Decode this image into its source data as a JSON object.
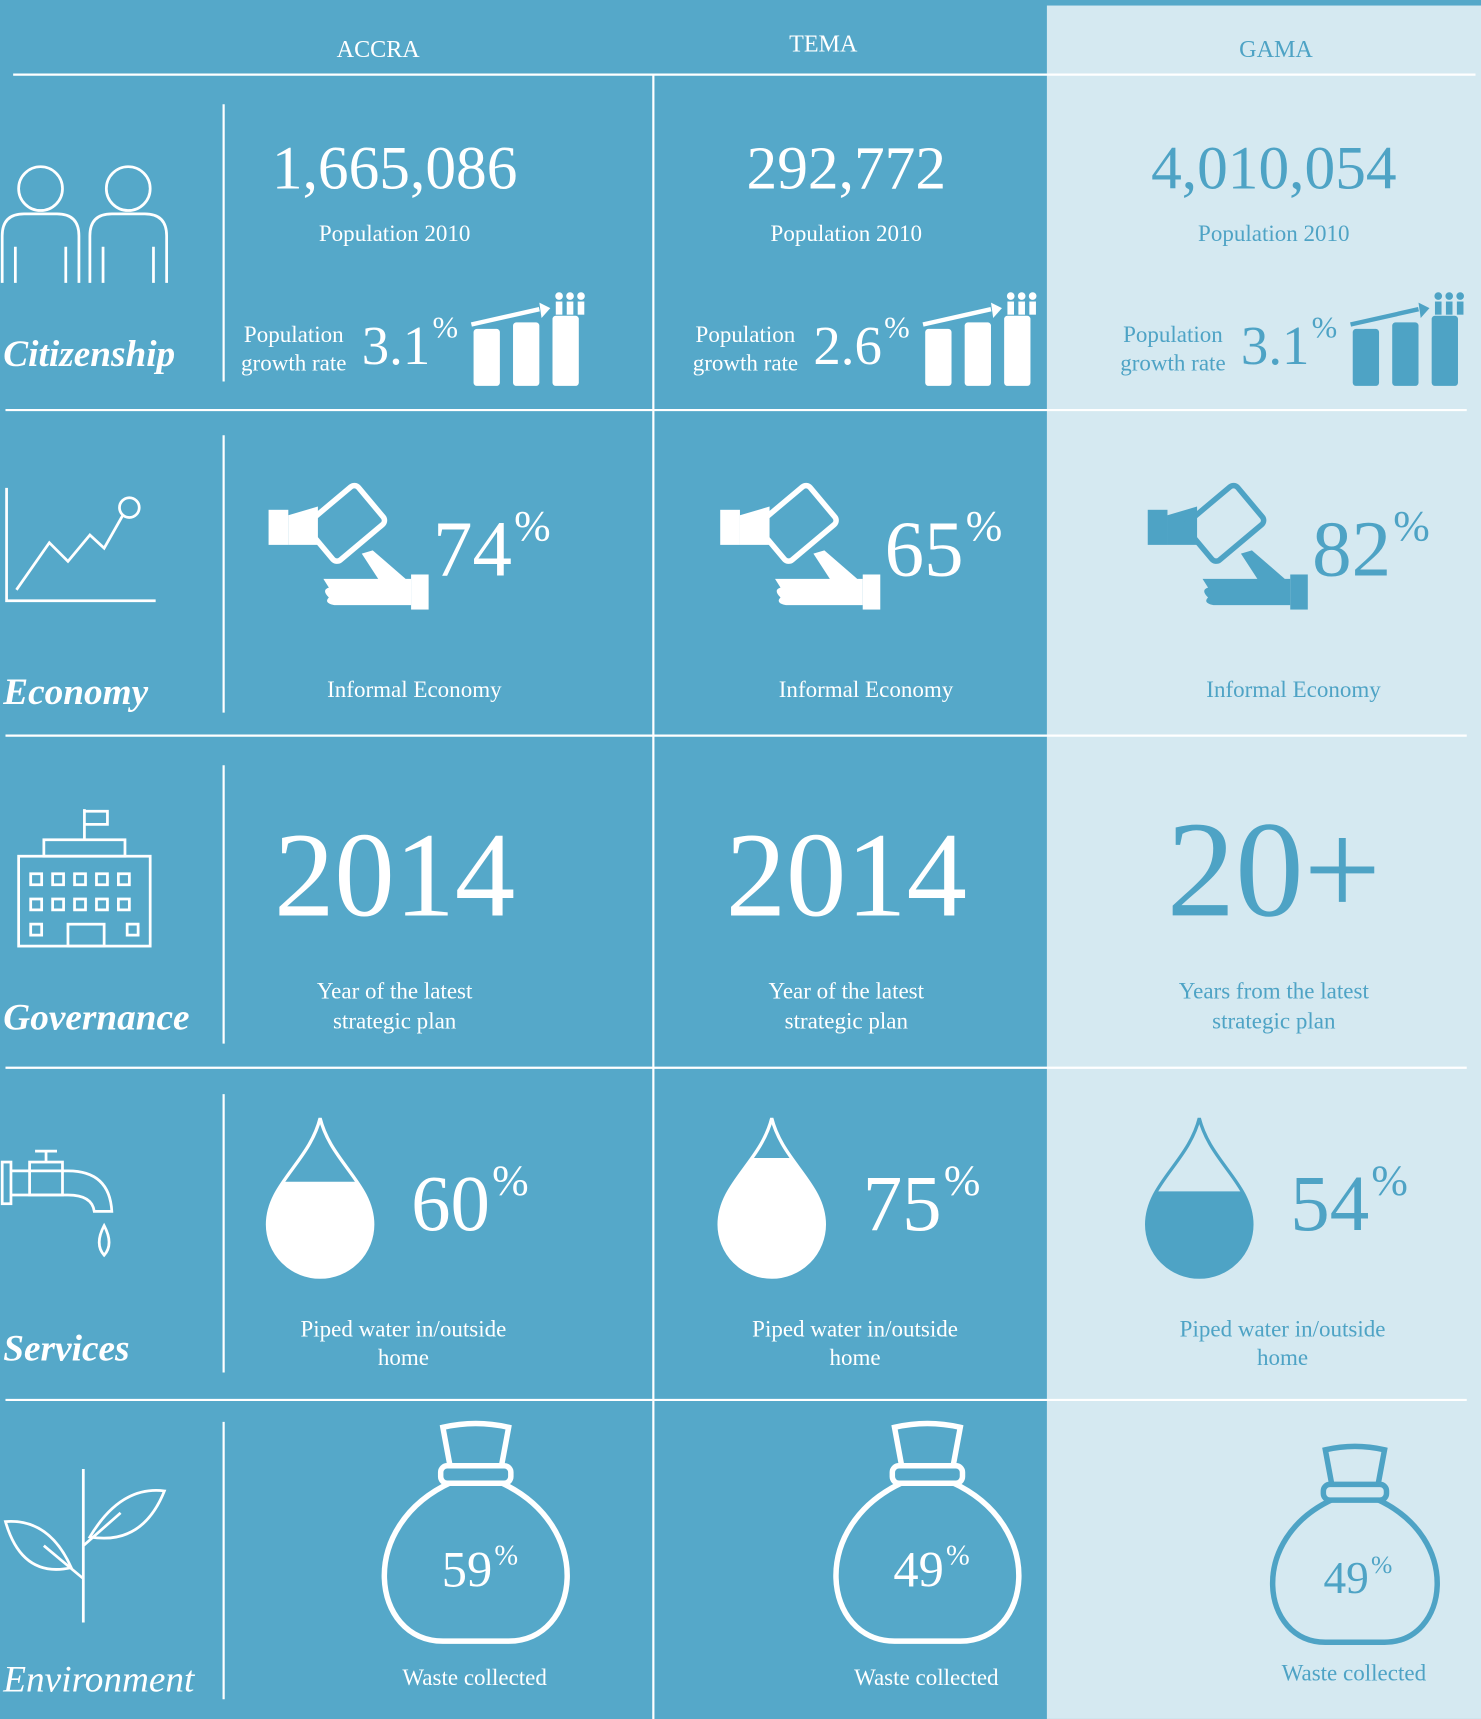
{
  "columns": [
    "ACCRA",
    "TEMA",
    "GAMA"
  ],
  "citizenship": {
    "label": "Citizenship",
    "cells": [
      {
        "value": "1,665,086",
        "caption": "Population 2010",
        "growth_lines": [
          "Population",
          "growth rate"
        ],
        "growth": "3.1",
        "unit": "%"
      },
      {
        "value": "292,772",
        "caption": "Population 2010",
        "growth_lines": [
          "Population",
          "growth rate"
        ],
        "growth": "2.6",
        "unit": "%"
      },
      {
        "value": "4,010,054",
        "caption": "Population 2010",
        "growth_lines": [
          "Population",
          "growth rate"
        ],
        "growth": "3.1",
        "unit": "%"
      }
    ]
  },
  "economy": {
    "label": "Economy",
    "cells": [
      {
        "value": "74",
        "unit": "%",
        "caption": "Informal Economy"
      },
      {
        "value": "65",
        "unit": "%",
        "caption": "Informal Economy"
      },
      {
        "value": "82",
        "unit": "%",
        "caption": "Informal Economy"
      }
    ]
  },
  "governance": {
    "label": "Governance",
    "cells": [
      {
        "value": "2014",
        "caption_lines": [
          "Year of the latest",
          "strategic plan"
        ]
      },
      {
        "value": "2014",
        "caption_lines": [
          "Year of the latest",
          "strategic plan"
        ]
      },
      {
        "value": "20+",
        "caption_lines": [
          "Years from the latest",
          "strategic plan"
        ]
      }
    ]
  },
  "services": {
    "label": "Services",
    "cells": [
      {
        "value": "60",
        "unit": "%",
        "caption_lines": [
          "Piped water in/outside",
          "home"
        ]
      },
      {
        "value": "75",
        "unit": "%",
        "caption_lines": [
          "Piped water in/outside",
          "home"
        ]
      },
      {
        "value": "54",
        "unit": "%",
        "caption_lines": [
          "Piped water in/outside",
          "home"
        ]
      }
    ]
  },
  "environment": {
    "label": "Environment",
    "cells": [
      {
        "value": "59",
        "unit": "%",
        "caption": "Waste collected"
      },
      {
        "value": "49",
        "unit": "%",
        "caption": "Waste collected"
      },
      {
        "value": "49",
        "unit": "%",
        "caption": "Waste collected"
      }
    ]
  }
}
